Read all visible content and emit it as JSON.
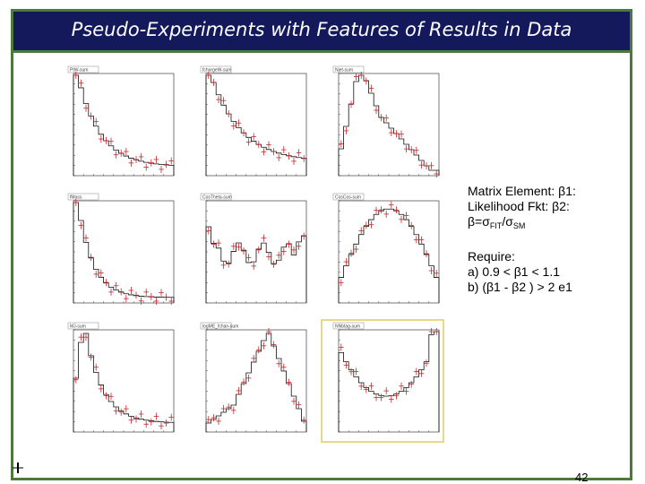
{
  "slide": {
    "title": "Pseudo-Experiments with Features of Results in Data",
    "page_number": "42"
  },
  "notes": {
    "line1": "Matrix Element: β1:",
    "line2": "Likelihood Fkt: β2:",
    "line3_prefix": "β=σ",
    "line3_sub1": "FIT",
    "line3_mid": "/σ",
    "line3_sub2": "SM",
    "require_label": "Require:",
    "req_a": "a) 0.9 < β1 < 1.1",
    "req_b": "b) (β1 - β2 ) > 2 e1"
  },
  "panels": [
    {
      "label": "PtW-sum",
      "kind": "decay",
      "highlight": false
    },
    {
      "label": "fchargeW-sum",
      "kind": "decay_long",
      "highlight": false
    },
    {
      "label": "Njet-sum",
      "kind": "peak",
      "highlight": false
    },
    {
      "label": "fMass",
      "kind": "sharp_decay",
      "highlight": false
    },
    {
      "label": "CosTheta-sum",
      "kind": "flat",
      "highlight": false
    },
    {
      "label": "CosCos-sum",
      "kind": "dome",
      "highlight": false
    },
    {
      "label": "MJ-sum",
      "kind": "decay_peak",
      "highlight": false
    },
    {
      "label": "logME_fchan-sum",
      "kind": "rise_peak",
      "highlight": false
    },
    {
      "label": "NNbtag-sum",
      "kind": "bowl",
      "highlight": true
    }
  ]
}
